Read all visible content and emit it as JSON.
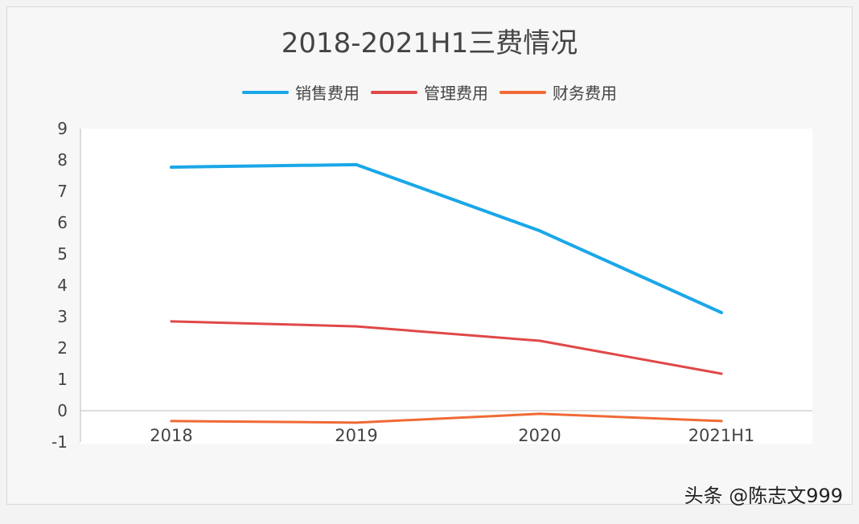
{
  "chart_data": {
    "type": "line",
    "title": "2018-2021H1三费情况",
    "categories": [
      "2018",
      "2019",
      "2020",
      "2021H1"
    ],
    "series": [
      {
        "name": "销售费用",
        "color": "#1aa7e8",
        "values": [
          7.77,
          7.85,
          5.74,
          3.13
        ]
      },
      {
        "name": "管理费用",
        "color": "#e04848",
        "values": [
          2.85,
          2.69,
          2.23,
          1.18
        ]
      },
      {
        "name": "财务费用",
        "color": "#ef6a35",
        "values": [
          -0.33,
          -0.38,
          -0.1,
          -0.33
        ]
      }
    ],
    "ylim": [
      -1,
      9
    ],
    "yticks": [
      "-1",
      "0",
      "1",
      "2",
      "3",
      "4",
      "5",
      "6",
      "7",
      "8",
      "9"
    ],
    "grid": false,
    "legend_position": "top"
  },
  "watermark": "头条 @陈志文999"
}
